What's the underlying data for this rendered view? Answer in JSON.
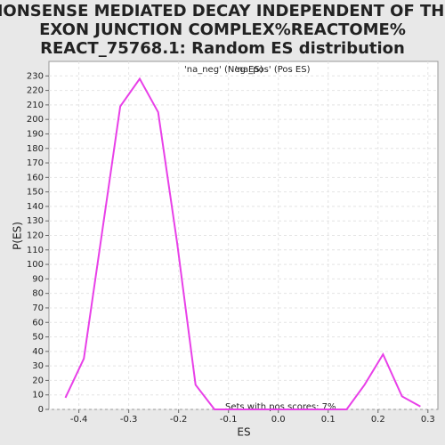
{
  "chart_data": {
    "type": "line",
    "title": [
      "NONSENSE MEDIATED DECAY INDEPENDENT OF THE",
      "EXON JUNCTION COMPLEX%REACTOME%",
      "REACT_75768.1: Random ES distribution"
    ],
    "xlabel": "ES",
    "ylabel": "P(ES)",
    "legend": [
      {
        "name": "'na_neg' (Neg ES)",
        "color": "#4040e0"
      },
      {
        "name": "'na_pos' (Pos ES)",
        "color": "#e03030"
      }
    ],
    "annotation": "Sets with pos scores: 7%",
    "x": [
      -0.427,
      -0.39,
      -0.317,
      -0.278,
      -0.241,
      -0.203,
      -0.166,
      -0.128,
      -0.09,
      -0.053,
      -0.015,
      0.022,
      0.06,
      0.098,
      0.137,
      0.173,
      0.21,
      0.248,
      0.285
    ],
    "series": [
      {
        "name": "P(ES)",
        "color": "#e840e8",
        "values": [
          8,
          35,
          209,
          228,
          205,
          115,
          17,
          0,
          0,
          0,
          0,
          0,
          0,
          0,
          0,
          17,
          38,
          9,
          2
        ]
      }
    ],
    "xlim": [
      -0.46,
      0.32
    ],
    "xticks": [
      -0.4,
      -0.3,
      -0.2,
      -0.1,
      {
        "value": 0,
        "label": "0.0"
      },
      0.1,
      0.2,
      0.3
    ],
    "ylim": [
      0,
      240
    ],
    "yticks": [
      0,
      10,
      20,
      30,
      40,
      50,
      60,
      70,
      80,
      90,
      100,
      110,
      120,
      130,
      140,
      150,
      160,
      170,
      180,
      190,
      200,
      210,
      220,
      230
    ],
    "grid": true
  }
}
